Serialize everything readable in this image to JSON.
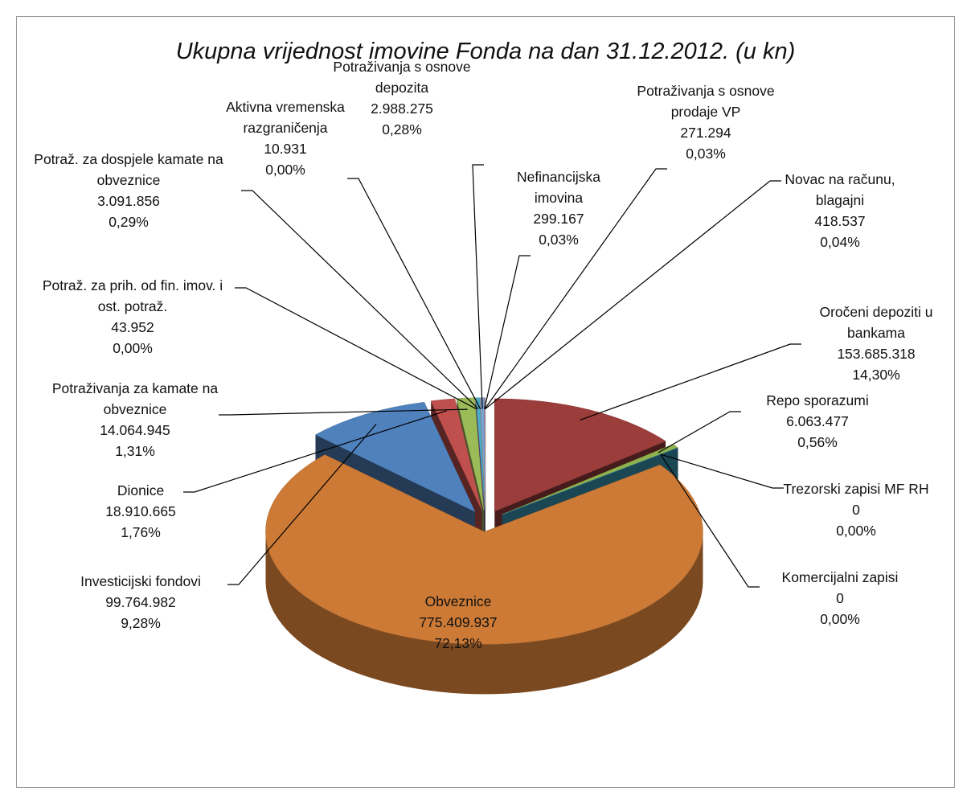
{
  "chart_data": {
    "type": "pie",
    "title": "Ukupna vrijednost imovine Fonda na dan 31.12.2012. (u kn)",
    "categories": [
      "Oročeni depoziti u bankama",
      "Repo sporazumi",
      "Trezorski zapisi MF RH",
      "Komercijalni zapisi",
      "Obveznice",
      "Investicijski fondovi",
      "Dionice",
      "Potraživanja za kamate na obveznice",
      "Potraž. za prih. od fin. imov. i ost. potraž.",
      "Potraž. za dospjele kamate na obveznice",
      "Aktivna vremenska razgraničenja",
      "Potraživanja s osnove depozita",
      "Nefinancijska imovina",
      "Potraživanja s osnove prodaje VP",
      "Novac na računu, blagajni"
    ],
    "values": [
      153685318,
      6063477,
      0,
      0,
      775409937,
      99764982,
      18910665,
      14064945,
      43952,
      3091856,
      10931,
      2988275,
      299167,
      271294,
      418537
    ],
    "value_labels": [
      "153.685.318",
      "6.063.477",
      "0",
      "0",
      "775.409.937",
      "99.764.982",
      "18.910.665",
      "14.064.945",
      "43.952",
      "3.091.856",
      "10.931",
      "2.988.275",
      "299.167",
      "271.294",
      "418.537"
    ],
    "percents": [
      14.3,
      0.56,
      0,
      0,
      72.13,
      9.28,
      1.76,
      1.31,
      0,
      0.29,
      0,
      0.28,
      0.03,
      0.03,
      0.04
    ],
    "percent_labels": [
      "14,30%",
      "0,56%",
      "0,00%",
      "0,00%",
      "72,13%",
      "9,28%",
      "1,76%",
      "1,31%",
      "0,00%",
      "0,29%",
      "0,00%",
      "0,28%",
      "0,03%",
      "0,03%",
      "0,04%"
    ],
    "colors": [
      "#9b3d3b",
      "#8fb24c",
      "#7a5c9c",
      "#3d9cb8",
      "#cc7a36",
      "#4f81bd",
      "#c0504d",
      "#9bbb59",
      "#8064a2",
      "#4bacc6",
      "#f79646",
      "#7aa0d4",
      "#d08580",
      "#b6cc8a",
      "#a590c4"
    ]
  }
}
